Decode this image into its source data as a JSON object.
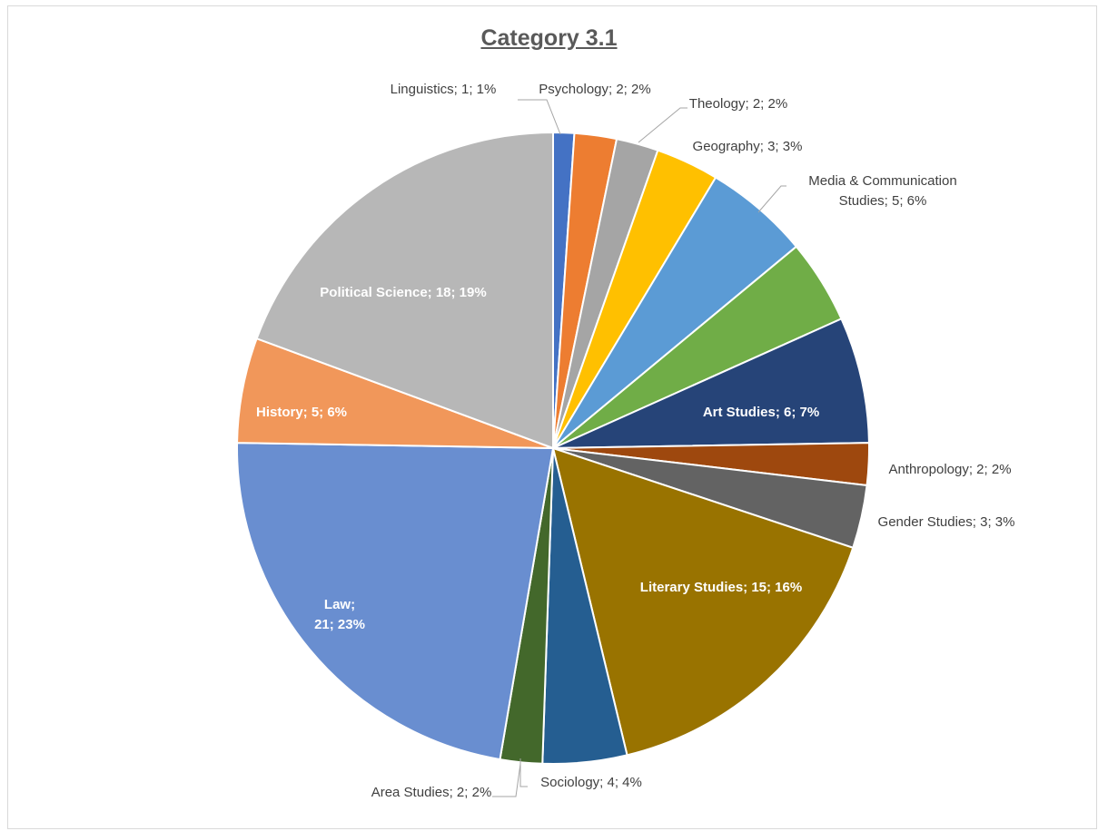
{
  "chart_data": {
    "type": "pie",
    "title": "Category 3.1",
    "slices": [
      {
        "name": "Linguistics",
        "value": 1,
        "percent": "1%",
        "color": "#4472c4",
        "label": "Linguistics; 1; 1%"
      },
      {
        "name": "Psychology",
        "value": 2,
        "percent": "2%",
        "color": "#ed7d31",
        "label": "Psychology; 2; 2%"
      },
      {
        "name": "Theology",
        "value": 2,
        "percent": "2%",
        "color": "#a5a5a5",
        "label": "Theology; 2; 2%"
      },
      {
        "name": "Geography",
        "value": 3,
        "percent": "3%",
        "color": "#ffc000",
        "label": "Geography; 3; 3%"
      },
      {
        "name": "Media & Communication Studies",
        "value": 5,
        "percent": "6%",
        "color": "#5b9bd5",
        "label": [
          "Media & Communication",
          "Studies; 5; 6%"
        ]
      },
      {
        "name": "",
        "value": 4,
        "percent": "",
        "color": "#70ad47",
        "label": ""
      },
      {
        "name": "Art Studies",
        "value": 6,
        "percent": "7%",
        "color": "#264478",
        "label": "Art Studies; 6; 7%"
      },
      {
        "name": "Anthropology",
        "value": 2,
        "percent": "2%",
        "color": "#9e480e",
        "label": "Anthropology; 2; 2%"
      },
      {
        "name": "Gender Studies",
        "value": 3,
        "percent": "3%",
        "color": "#636363",
        "label": "Gender Studies; 3; 3%"
      },
      {
        "name": "Literary Studies",
        "value": 15,
        "percent": "16%",
        "color": "#997300",
        "label": "Literary Studies; 15; 16%"
      },
      {
        "name": "Sociology",
        "value": 4,
        "percent": "4%",
        "color": "#255e91",
        "label": "Sociology; 4; 4%"
      },
      {
        "name": "Area Studies",
        "value": 2,
        "percent": "2%",
        "color": "#43682b",
        "label": "Area Studies; 2; 2%"
      },
      {
        "name": "Law",
        "value": 21,
        "percent": "23%",
        "color": "#698ed0",
        "label": [
          "Law;",
          "21; 23%"
        ]
      },
      {
        "name": "History",
        "value": 5,
        "percent": "6%",
        "color": "#f1975a",
        "label": "History; 5; 6%"
      },
      {
        "name": "Political Science",
        "value": 18,
        "percent": "19%",
        "color": "#b7b7b7",
        "label": "Political Science; 18; 19%"
      }
    ]
  }
}
